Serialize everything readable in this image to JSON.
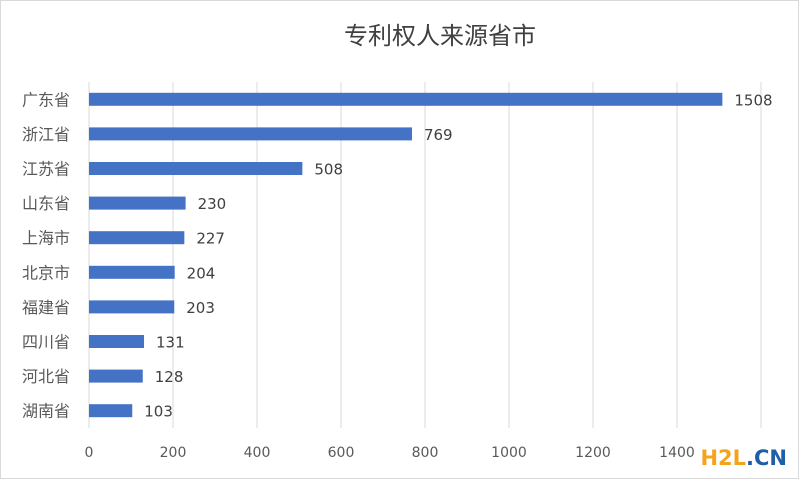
{
  "chart_data": {
    "type": "bar",
    "orientation": "horizontal",
    "title": "专利权人来源省市",
    "categories": [
      "广东省",
      "浙江省",
      "江苏省",
      "山东省",
      "上海市",
      "北京市",
      "福建省",
      "四川省",
      "河北省",
      "湖南省"
    ],
    "values": [
      1508,
      769,
      508,
      230,
      227,
      204,
      203,
      131,
      128,
      103
    ],
    "xlim": [
      0,
      1600
    ],
    "xticks": [
      0,
      200,
      400,
      600,
      800,
      1000,
      1200,
      1400,
      1600
    ],
    "grid": true,
    "legend": "none",
    "colors": {
      "bar": "#4472c4",
      "grid": "#d9d9d9",
      "text": "#595959",
      "title": "#404040"
    }
  },
  "watermark": {
    "h2": "H2",
    "l": "L",
    "dot": ".",
    "cn": "CN",
    "colors": [
      "#f7a21b",
      "#1f5fa8"
    ]
  }
}
